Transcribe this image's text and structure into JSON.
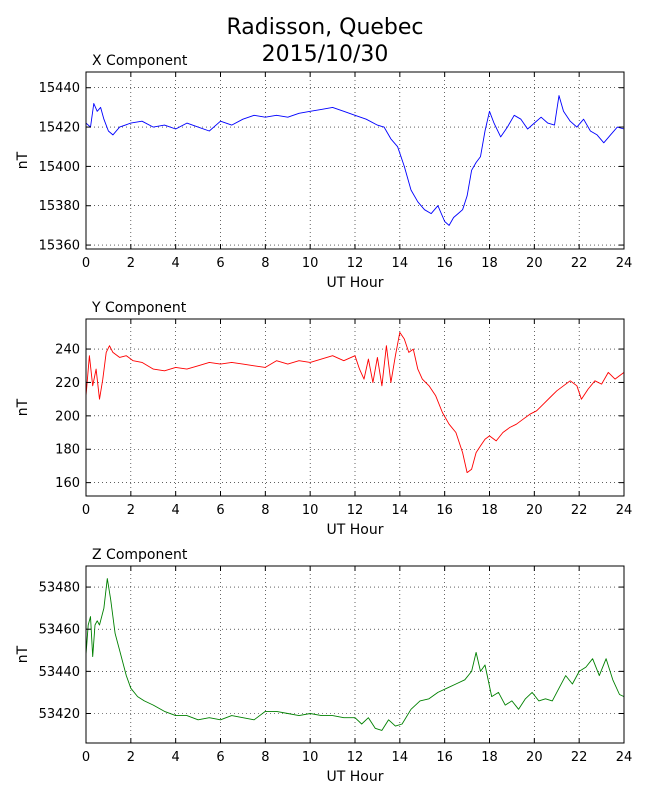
{
  "figure": {
    "title_line1": "Radisson, Quebec",
    "title_line2": "2015/10/30"
  },
  "chart_data": [
    {
      "type": "line",
      "title": "X Component",
      "xlabel": "UT Hour",
      "ylabel": "nT",
      "xlim": [
        0,
        24
      ],
      "ylim": [
        15358,
        15448
      ],
      "xticks": [
        0,
        2,
        4,
        6,
        8,
        10,
        12,
        14,
        16,
        18,
        20,
        22,
        24
      ],
      "yticks": [
        15360,
        15380,
        15400,
        15420,
        15440
      ],
      "grid": true,
      "color": "#0000ff",
      "series": [
        {
          "x": [
            0,
            0.2,
            0.35,
            0.5,
            0.65,
            0.8,
            1.0,
            1.2,
            1.5,
            2.0,
            2.5,
            3.0,
            3.5,
            4.0,
            4.5,
            5.0,
            5.5,
            6.0,
            6.5,
            7.0,
            7.5,
            8.0,
            8.5,
            9.0,
            9.5,
            10.0,
            10.5,
            11.0,
            11.5,
            12.0,
            12.5,
            13.0,
            13.3,
            13.6,
            13.9,
            14.2,
            14.5,
            14.8,
            15.1,
            15.4,
            15.7,
            16.0,
            16.2,
            16.4,
            16.6,
            16.8,
            17.0,
            17.2,
            17.4,
            17.6,
            17.8,
            18.0,
            18.2,
            18.5,
            18.8,
            19.1,
            19.4,
            19.7,
            20.0,
            20.3,
            20.6,
            20.9,
            21.1,
            21.3,
            21.6,
            21.9,
            22.2,
            22.5,
            22.8,
            23.1,
            23.4,
            23.7,
            24.0
          ],
          "y": [
            15422,
            15420,
            15432,
            15428,
            15430,
            15424,
            15418,
            15416,
            15420,
            15422,
            15423,
            15420,
            15421,
            15419,
            15422,
            15420,
            15418,
            15423,
            15421,
            15424,
            15426,
            15425,
            15426,
            15425,
            15427,
            15428,
            15429,
            15430,
            15428,
            15426,
            15424,
            15421,
            15420,
            15414,
            15410,
            15400,
            15388,
            15382,
            15378,
            15376,
            15380,
            15372,
            15370,
            15374,
            15376,
            15378,
            15385,
            15398,
            15402,
            15405,
            15418,
            15428,
            15422,
            15415,
            15420,
            15426,
            15424,
            15419,
            15422,
            15425,
            15422,
            15421,
            15436,
            15428,
            15423,
            15420,
            15424,
            15418,
            15416,
            15412,
            15416,
            15420,
            15419
          ]
        }
      ]
    },
    {
      "type": "line",
      "title": "Y Component",
      "xlabel": "UT Hour",
      "ylabel": "nT",
      "xlim": [
        0,
        24
      ],
      "ylim": [
        152,
        258
      ],
      "xticks": [
        0,
        2,
        4,
        6,
        8,
        10,
        12,
        14,
        16,
        18,
        20,
        22,
        24
      ],
      "yticks": [
        160,
        180,
        200,
        220,
        240
      ],
      "grid": true,
      "color": "#ff0000",
      "series": [
        {
          "x": [
            0,
            0.15,
            0.3,
            0.45,
            0.6,
            0.75,
            0.9,
            1.05,
            1.2,
            1.5,
            1.8,
            2.1,
            2.5,
            3.0,
            3.5,
            4.0,
            4.5,
            5.0,
            5.5,
            6.0,
            6.5,
            7.0,
            7.5,
            8.0,
            8.5,
            9.0,
            9.5,
            10.0,
            10.5,
            11.0,
            11.5,
            12.0,
            12.2,
            12.4,
            12.6,
            12.8,
            13.0,
            13.2,
            13.4,
            13.6,
            13.8,
            14.0,
            14.2,
            14.4,
            14.6,
            14.8,
            15.0,
            15.3,
            15.6,
            15.9,
            16.2,
            16.5,
            16.8,
            17.0,
            17.2,
            17.4,
            17.6,
            17.8,
            18.0,
            18.3,
            18.6,
            18.9,
            19.2,
            19.5,
            19.8,
            20.1,
            20.4,
            20.7,
            21.0,
            21.3,
            21.6,
            21.9,
            22.1,
            22.4,
            22.7,
            23.0,
            23.3,
            23.6,
            24.0
          ],
          "y": [
            212,
            236,
            218,
            228,
            210,
            222,
            238,
            242,
            238,
            235,
            236,
            233,
            232,
            228,
            227,
            229,
            228,
            230,
            232,
            231,
            232,
            231,
            230,
            229,
            233,
            231,
            233,
            232,
            234,
            236,
            233,
            236,
            228,
            222,
            234,
            220,
            235,
            218,
            242,
            220,
            236,
            250,
            246,
            238,
            240,
            228,
            222,
            218,
            212,
            202,
            195,
            190,
            178,
            166,
            168,
            178,
            182,
            186,
            188,
            185,
            190,
            193,
            195,
            198,
            201,
            203,
            207,
            211,
            215,
            218,
            221,
            218,
            210,
            216,
            221,
            219,
            226,
            222,
            226
          ]
        }
      ]
    },
    {
      "type": "line",
      "title": "Z Component",
      "xlabel": "UT Hour",
      "ylabel": "nT",
      "xlim": [
        0,
        24
      ],
      "ylim": [
        53406,
        53490
      ],
      "xticks": [
        0,
        2,
        4,
        6,
        8,
        10,
        12,
        14,
        16,
        18,
        20,
        22,
        24
      ],
      "yticks": [
        53420,
        53440,
        53460,
        53480
      ],
      "grid": true,
      "color": "#008000",
      "series": [
        {
          "x": [
            0,
            0.1,
            0.2,
            0.3,
            0.4,
            0.5,
            0.6,
            0.8,
            0.95,
            1.1,
            1.3,
            1.5,
            1.8,
            2.0,
            2.3,
            2.6,
            3.0,
            3.5,
            4.0,
            4.5,
            5.0,
            5.5,
            6.0,
            6.5,
            7.0,
            7.5,
            8.0,
            8.5,
            9.0,
            9.5,
            10.0,
            10.5,
            11.0,
            11.5,
            12.0,
            12.3,
            12.6,
            12.9,
            13.2,
            13.5,
            13.8,
            14.1,
            14.5,
            14.9,
            15.3,
            15.7,
            16.1,
            16.5,
            16.9,
            17.2,
            17.4,
            17.6,
            17.8,
            18.1,
            18.4,
            18.7,
            19.0,
            19.3,
            19.6,
            19.9,
            20.2,
            20.5,
            20.8,
            21.1,
            21.4,
            21.7,
            22.0,
            22.3,
            22.6,
            22.9,
            23.2,
            23.5,
            23.8,
            24.0
          ],
          "y": [
            53448,
            53462,
            53466,
            53447,
            53462,
            53464,
            53462,
            53470,
            53484,
            53474,
            53458,
            53450,
            53438,
            53432,
            53428,
            53426,
            53424,
            53421,
            53419,
            53419,
            53417,
            53418,
            53417,
            53419,
            53418,
            53417,
            53421,
            53421,
            53420,
            53419,
            53420,
            53419,
            53419,
            53418,
            53418,
            53415,
            53418,
            53413,
            53412,
            53417,
            53414,
            53415,
            53422,
            53426,
            53427,
            53430,
            53432,
            53434,
            53436,
            53440,
            53449,
            53440,
            53443,
            53428,
            53430,
            53424,
            53426,
            53422,
            53427,
            53430,
            53426,
            53427,
            53426,
            53432,
            53438,
            53434,
            53440,
            53442,
            53446,
            53438,
            53446,
            53436,
            53429,
            53428
          ]
        }
      ]
    }
  ]
}
